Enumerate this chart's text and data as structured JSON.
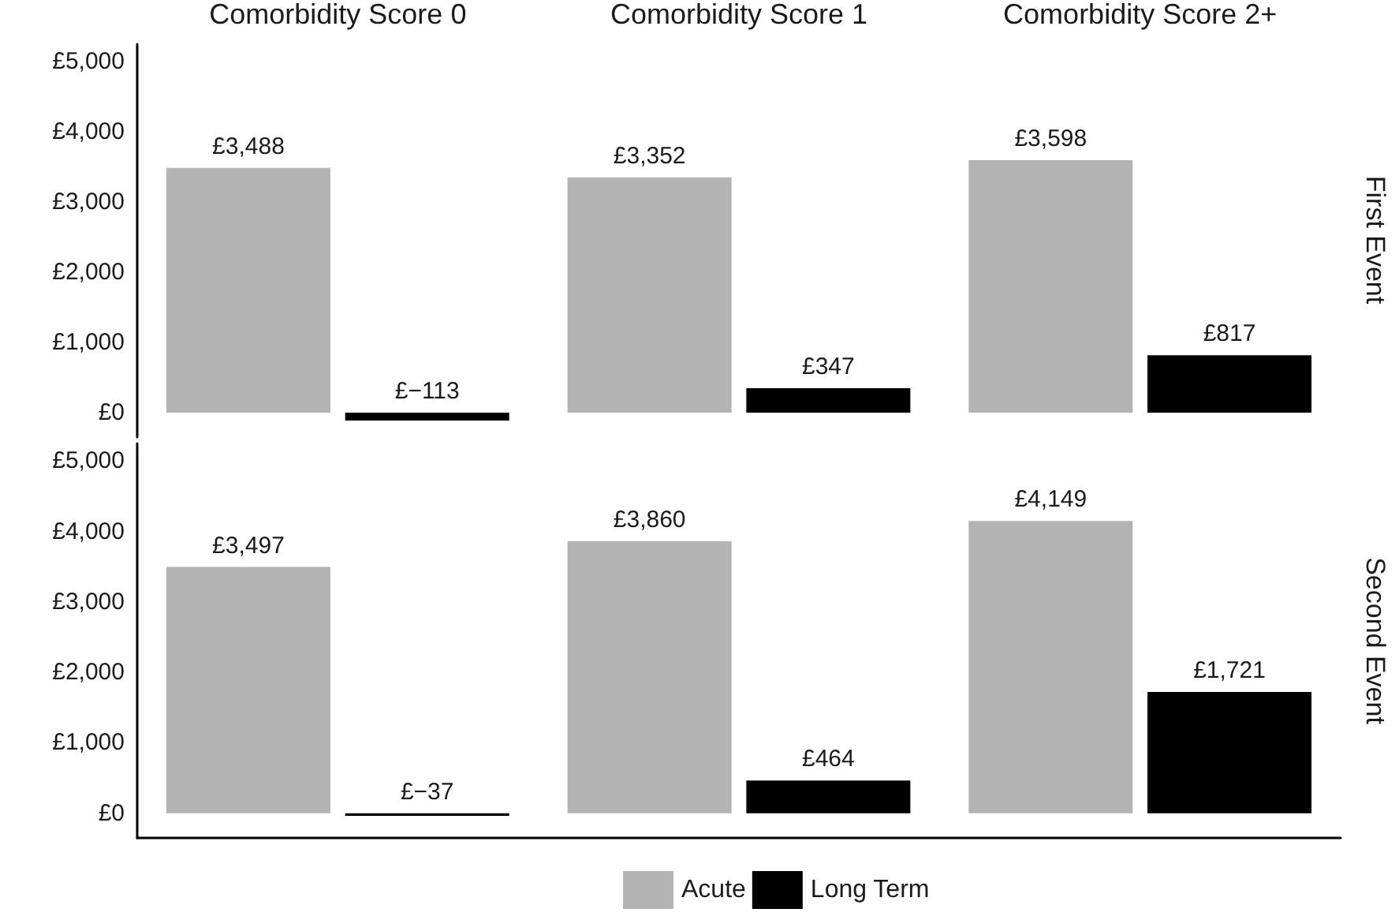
{
  "chart_data": [
    {
      "type": "bar",
      "categories": [
        "Comorbidity Score 0",
        "Comorbidity Score 1",
        "Comorbidity Score 2+"
      ],
      "ylim": [
        -350,
        5250
      ],
      "yticks": [
        {
          "value": 0,
          "label": "£0"
        },
        {
          "value": 1000,
          "label": "£1,000"
        },
        {
          "value": 2000,
          "label": "£2,000"
        },
        {
          "value": 3000,
          "label": "£3,000"
        },
        {
          "value": 4000,
          "label": "£4,000"
        },
        {
          "value": 5000,
          "label": "£5,000"
        }
      ],
      "annotations": [
        "First Event"
      ],
      "series": [
        {
          "color": "#b3b3b3",
          "values": [
            3488,
            3352,
            3598
          ],
          "value_labels": [
            "£3,488",
            "£3,352",
            "£3,598"
          ]
        },
        {
          "color": "#000000",
          "values": [
            -113,
            347,
            817
          ],
          "value_labels": [
            "£−113",
            "£347",
            "£817"
          ]
        }
      ]
    },
    {
      "type": "bar",
      "categories": [
        null,
        null,
        null
      ],
      "ylim": [
        -350,
        5250
      ],
      "yticks": [
        {
          "value": 0,
          "label": "£0"
        },
        {
          "value": 1000,
          "label": "£1,000"
        },
        {
          "value": 2000,
          "label": "£2,000"
        },
        {
          "value": 3000,
          "label": "£3,000"
        },
        {
          "value": 4000,
          "label": "£4,000"
        },
        {
          "value": 5000,
          "label": "£5,000"
        }
      ],
      "tick_labels": "y",
      "legend": "bottom",
      "annotations": [
        "Second Event"
      ],
      "series": [
        {
          "name": "Acute",
          "color": "#b3b3b3",
          "values": [
            3497,
            3860,
            4149
          ],
          "value_labels": [
            "£3,497",
            "£3,860",
            "£4,149"
          ]
        },
        {
          "name": "Long Term",
          "color": "#000000",
          "values": [
            -37,
            464,
            1721
          ],
          "value_labels": [
            "£−37",
            "£464",
            "£1,721"
          ]
        }
      ]
    }
  ]
}
